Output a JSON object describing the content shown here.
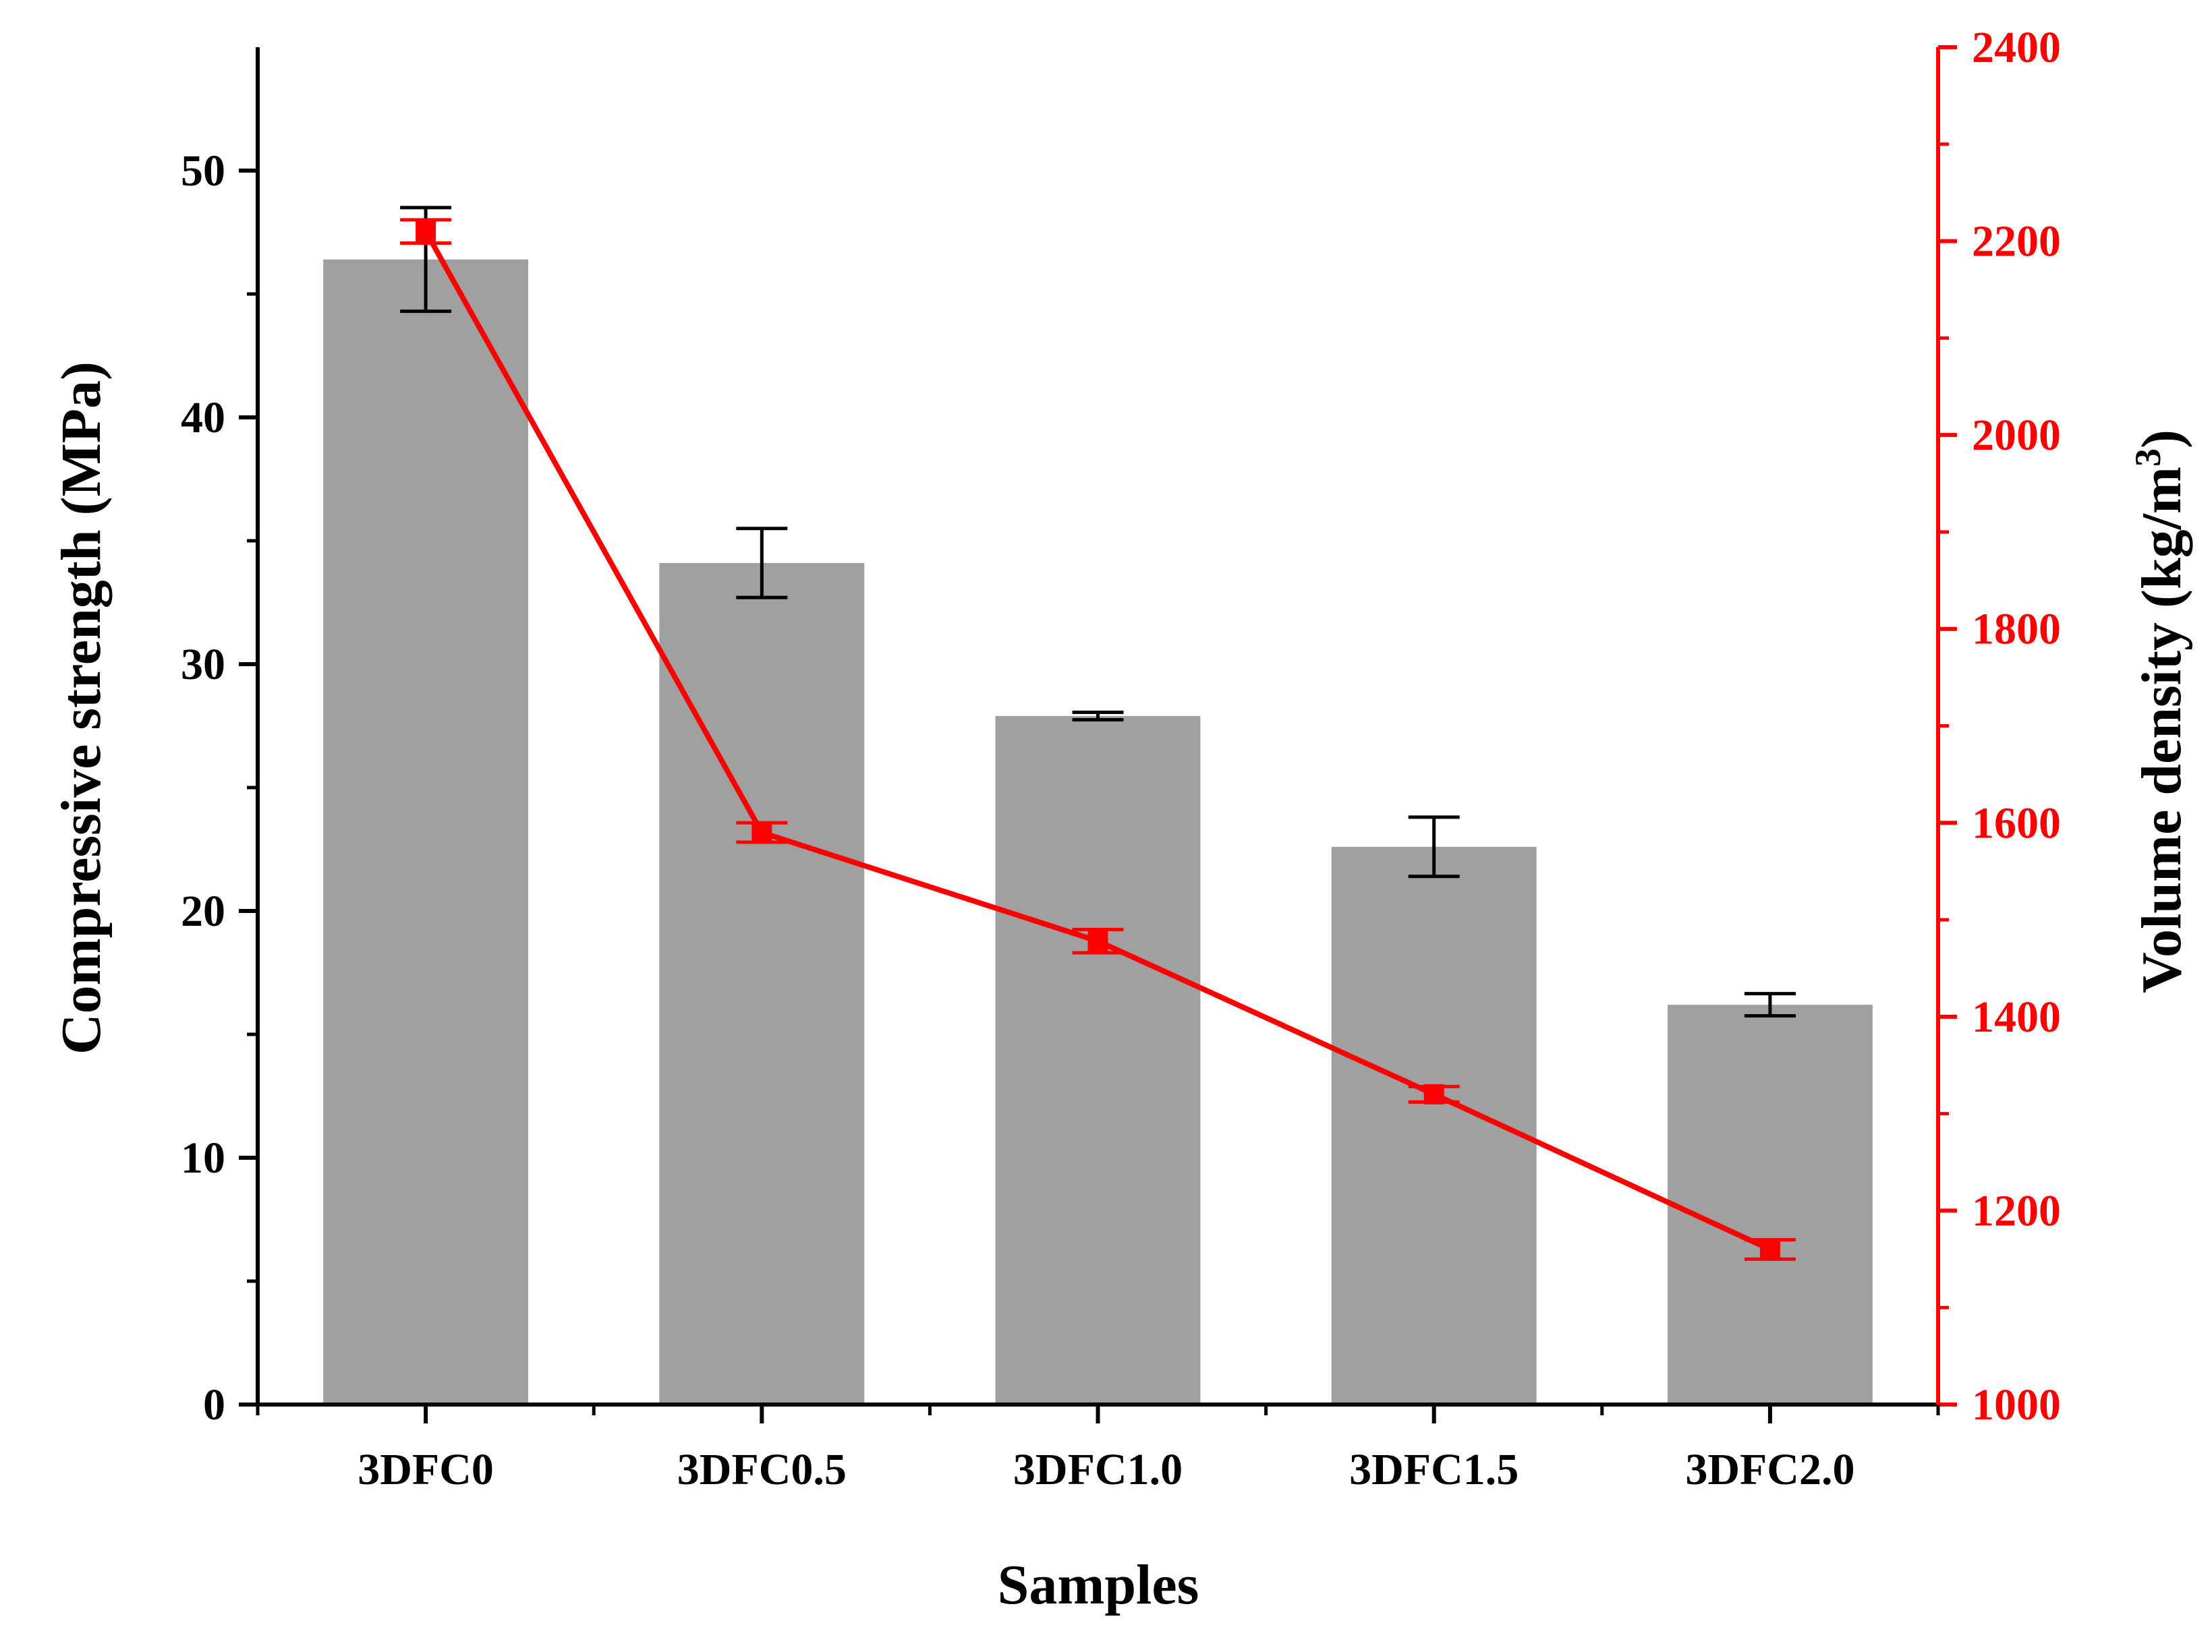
{
  "chart_data": {
    "type": "bar",
    "categories": [
      "3DFC0",
      "3DFC0.5",
      "3DFC1.0",
      "3DFC1.5",
      "3DFC2.0"
    ],
    "xlabel": "Samples",
    "series": [
      {
        "type": "bar",
        "axis": "left",
        "values": [
          46.4,
          34.1,
          27.9,
          22.6,
          16.2
        ],
        "error": [
          2.1,
          1.4,
          0.15,
          1.2,
          0.45
        ],
        "color": "#a0a0a0"
      },
      {
        "type": "line",
        "axis": "right",
        "values": [
          2210,
          1590,
          1478,
          1320,
          1160
        ],
        "error": [
          12,
          10,
          12,
          8,
          10
        ],
        "color": "#ff0000",
        "marker": "square"
      }
    ],
    "y_left": {
      "label": "Compressive strength (MPa)",
      "range": [
        0,
        55
      ],
      "ticks": [
        "0",
        "10",
        "20",
        "30",
        "40",
        "50"
      ],
      "tick_values": [
        0,
        10,
        20,
        30,
        40,
        50
      ]
    },
    "y_right": {
      "label_base": "Volume density (kg/m",
      "label_sup": "3",
      "label_end": ")",
      "range": [
        1000,
        2400
      ],
      "ticks": [
        "1000",
        "1200",
        "1400",
        "1600",
        "1800",
        "2000",
        "2200",
        "2400"
      ],
      "tick_values": [
        1000,
        1200,
        1400,
        1600,
        1800,
        2000,
        2200,
        2400
      ],
      "color": "#ff0000"
    },
    "grid": false,
    "legend": "none"
  }
}
